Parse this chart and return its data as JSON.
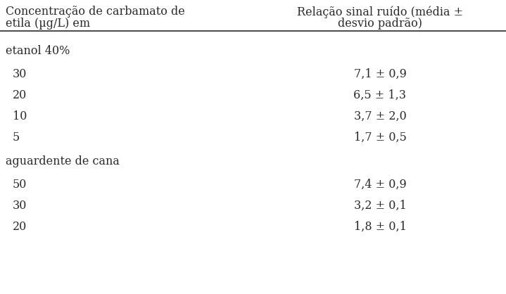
{
  "col1_header_line1": "Concentração de carbamato de",
  "col1_header_line2": "etila (µg/L) em",
  "col2_header_line1": "Relação sinal ruído (média ±",
  "col2_header_line2": "desvio padrão)",
  "section1_label": "etanol 40%",
  "section1_rows": [
    {
      "conc": "30",
      "snr": "7,1 ± 0,9"
    },
    {
      "conc": "20",
      "snr": "6,5 ± 1,3"
    },
    {
      "conc": "10",
      "snr": "3,7 ± 2,0"
    },
    {
      "conc": "5",
      "snr": "1,7 ± 0,5"
    }
  ],
  "section2_label": "aguardente de cana",
  "section2_rows": [
    {
      "conc": "50",
      "snr": "7,4 ± 0,9"
    },
    {
      "conc": "30",
      "snr": "3,2 ± 0,1"
    },
    {
      "conc": "20",
      "snr": "1,8 ± 0,1"
    }
  ],
  "bg_color": "#ffffff",
  "text_color": "#2a2a2a",
  "font_size": 11.5
}
